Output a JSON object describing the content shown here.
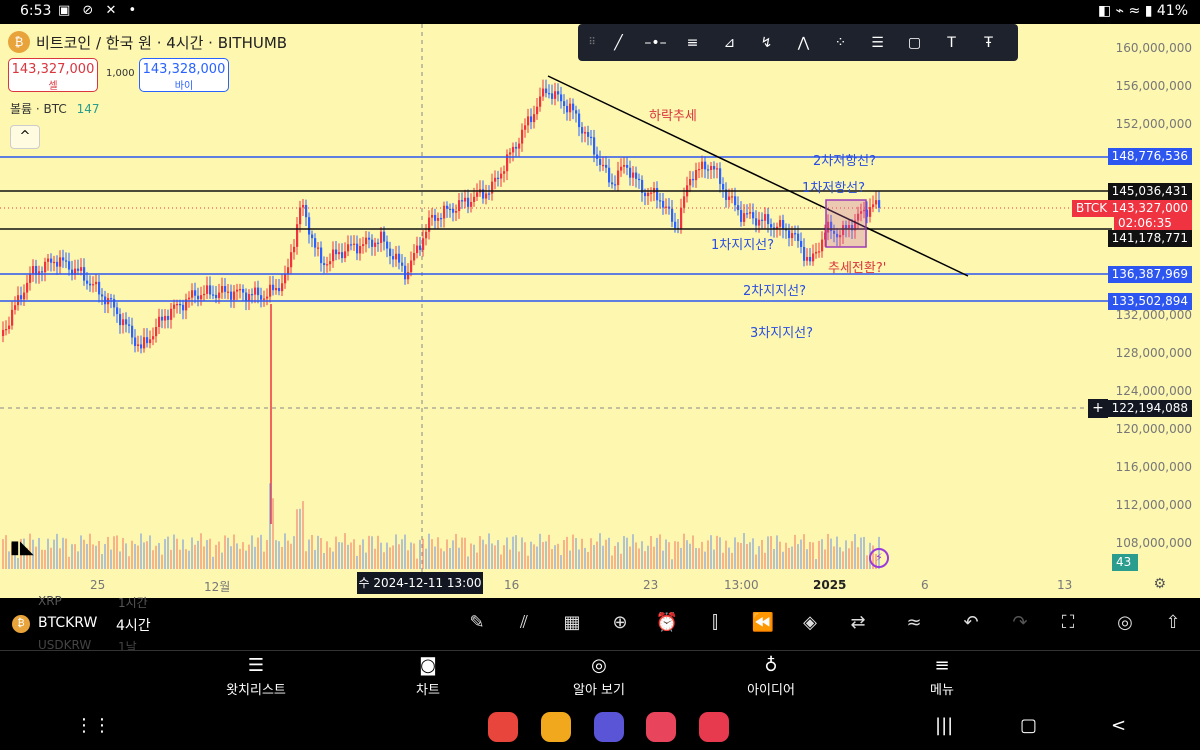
{
  "status_bar": {
    "time": "6:53",
    "icons": "▣ ⊘ ✕ •",
    "right": "◧ ⌁ ≈ ▮ 41%"
  },
  "chart_title": "비트코인 / 한국 원 · 4시간 · BITHUMB",
  "logo_glyph": "₿",
  "sell": {
    "price": "143,327,000",
    "label": "셀"
  },
  "buy": {
    "price": "143,328,000",
    "label": "바이"
  },
  "spread": "1,000",
  "volume": {
    "label": "볼륨 · BTC",
    "value": "147"
  },
  "collapse_glyph": "^",
  "toolbar_glyphs": [
    "⠿",
    "╱",
    "–•–",
    "≡",
    "⊿",
    "↯",
    "⋀",
    "⁘",
    "☰",
    "▢",
    "T",
    "Ŧ"
  ],
  "price_axis": [
    "160,000,000",
    "156,000,000",
    "152,000,000",
    "132,000,000",
    "128,000,000",
    "124,000,000",
    "120,000,000",
    "116,000,000",
    "112,000,000",
    "108,000,000"
  ],
  "price_tags": {
    "h1": "148,776,536",
    "h2": "145,036,431",
    "sym": "BTCKRW",
    "last": "143,327,000",
    "countdown": "02:06:35",
    "h3": "141,178,771",
    "h4": "136,387,969",
    "h5": "133,502,894",
    "crosshair": "122,194,088",
    "vol": "43"
  },
  "x_axis": [
    "25",
    "12월",
    "16",
    "23",
    "13:00",
    "2025",
    "6",
    "13"
  ],
  "crosshair_date": "수 2024-12-11  13:00",
  "annotations": {
    "downtrend": "하락추세",
    "r2": "2차저항선?",
    "r1": "1차저항선?",
    "s1": "1차지지선?",
    "turn": "추세전환?'",
    "s2": "2차지지선?",
    "s3": "3차지지선?"
  },
  "bottom_panel": {
    "symbol": "BTCKRW",
    "interval": "4시간",
    "ghost_top1": "XRP",
    "ghost_top2": "1시간",
    "ghost_bot1": "USDKRW",
    "ghost_bot2": "1날"
  },
  "panel_tools": [
    "✎",
    "⫽",
    "▦",
    "⊕",
    "⏰",
    "⫿",
    "⏪",
    "◈",
    "⇄",
    "≈",
    "↶",
    "↷",
    "⛶",
    "◎",
    "⇧"
  ],
  "nav": [
    {
      "label": "왓치리스트",
      "icon": "☰"
    },
    {
      "label": "차트",
      "icon": "◙"
    },
    {
      "label": "알아 보기",
      "icon": "◎"
    },
    {
      "label": "아이디어",
      "icon": "♁"
    },
    {
      "label": "메뉴",
      "icon": "≡"
    }
  ],
  "system_nav": {
    "apps": "⋮⋮",
    "recents": "|||",
    "home": "▢",
    "back": "<"
  },
  "colors": {
    "bg": "#fdf7b0",
    "up": "#ef3340",
    "down": "#2962ff",
    "line_blue": "#2d56f0",
    "line_black": "#111111",
    "annot_blue": "#2a4ee0",
    "annot_red": "#d9363e"
  }
}
